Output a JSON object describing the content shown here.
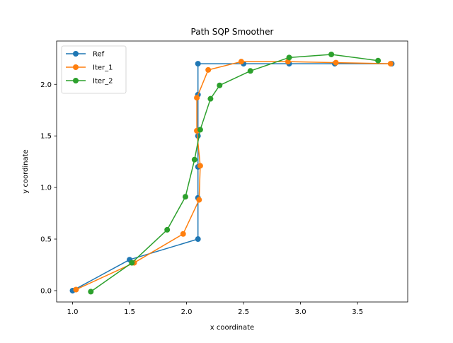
{
  "chart_data": {
    "type": "line",
    "title": "Path SQP Smoother",
    "xlabel": "x coordinate",
    "ylabel": "y coordinate",
    "xlim": [
      0.86,
      3.94
    ],
    "ylim": [
      -0.11,
      2.42
    ],
    "xticks": [
      1.0,
      1.5,
      2.0,
      2.5,
      3.0,
      3.5
    ],
    "xtick_labels": [
      "1.0",
      "1.5",
      "2.0",
      "2.5",
      "3.0",
      "3.5"
    ],
    "yticks": [
      0.0,
      0.5,
      1.0,
      1.5,
      2.0
    ],
    "ytick_labels": [
      "0.0",
      "0.5",
      "1.0",
      "1.5",
      "2.0"
    ],
    "grid": false,
    "legend_position": "top-left",
    "series": [
      {
        "name": "Ref",
        "color": "#1f77b4",
        "marker": "circle",
        "x": [
          1.0,
          1.5,
          2.1,
          2.1,
          2.1,
          2.1,
          2.1,
          2.1,
          2.5,
          2.9,
          3.3,
          3.8
        ],
        "y": [
          0.0,
          0.3,
          0.5,
          0.9,
          1.2,
          1.5,
          1.9,
          2.2,
          2.2,
          2.2,
          2.2,
          2.2
        ]
      },
      {
        "name": "Iter_1",
        "color": "#ff7f0e",
        "marker": "circle",
        "x": [
          1.03,
          1.54,
          1.97,
          2.11,
          2.12,
          2.09,
          2.09,
          2.19,
          2.48,
          2.89,
          3.31,
          3.79
        ],
        "y": [
          0.01,
          0.27,
          0.55,
          0.88,
          1.21,
          1.55,
          1.87,
          2.14,
          2.22,
          2.22,
          2.21,
          2.2
        ]
      },
      {
        "name": "Iter_2",
        "color": "#2ca02c",
        "marker": "circle",
        "x": [
          1.16,
          1.52,
          1.83,
          1.99,
          2.07,
          2.12,
          2.21,
          2.29,
          2.56,
          2.9,
          3.27,
          3.68
        ],
        "y": [
          -0.01,
          0.27,
          0.59,
          0.91,
          1.27,
          1.56,
          1.86,
          1.99,
          2.13,
          2.26,
          2.29,
          2.23
        ]
      }
    ]
  }
}
